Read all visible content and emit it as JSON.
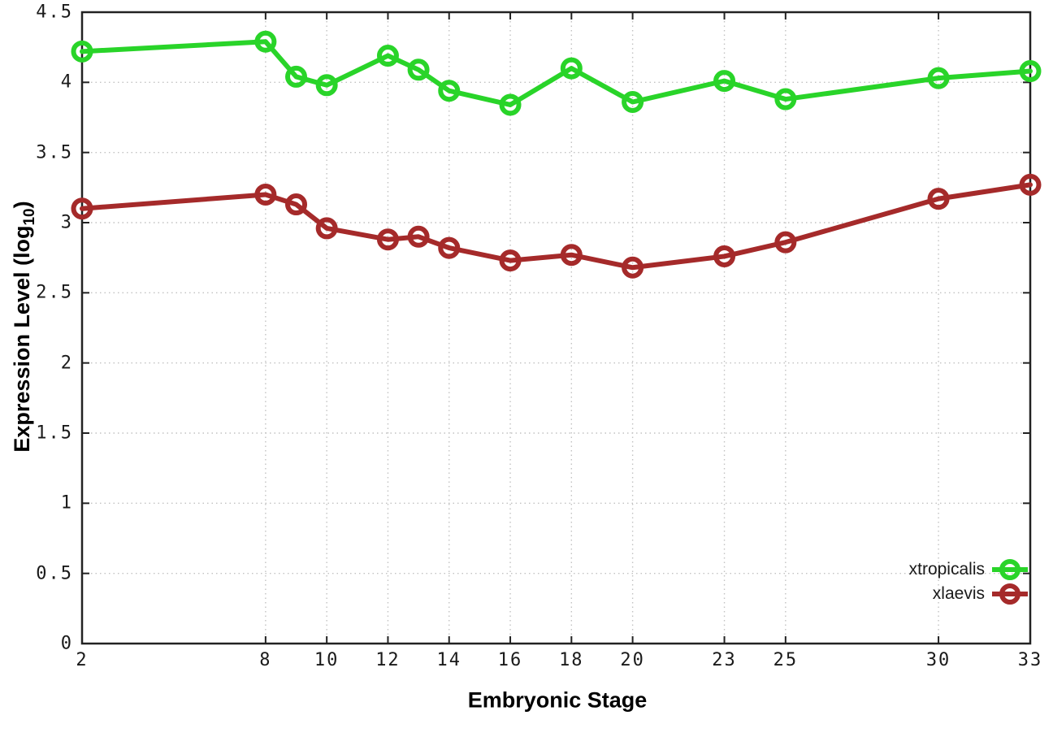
{
  "figure": {
    "background": "#ffffff",
    "border_color": "#222222",
    "grid_color": "#c2c2c2",
    "tick_color": "#222222",
    "text_color": "#1a1a1a"
  },
  "chart_data": {
    "type": "line",
    "title": "",
    "xlabel": "Embryonic Stage",
    "ylabel": "Expression Level (log10)",
    "ylabel_parts": {
      "prefix": "Expression Level (log",
      "sub": "10",
      "suffix": ")"
    },
    "xlim": [
      2,
      33
    ],
    "ylim": [
      0,
      4.5
    ],
    "grid": true,
    "grid_style": "dotted",
    "legend_position": "inside-bottom-right",
    "x_ticks": [
      2,
      8,
      10,
      12,
      14,
      16,
      18,
      20,
      23,
      25,
      30,
      33
    ],
    "x_tick_labels": [
      "2",
      "8",
      "10",
      "12",
      "14",
      "16",
      "18",
      "20",
      "23",
      "25",
      "30",
      "33"
    ],
    "y_ticks": [
      0,
      0.5,
      1,
      1.5,
      2,
      2.5,
      3,
      3.5,
      4,
      4.5
    ],
    "y_tick_labels": [
      "0",
      "0.5",
      "1",
      "1.5",
      "2",
      "2.5",
      "3",
      "3.5",
      "4",
      "4.5"
    ],
    "x": [
      2,
      8,
      9,
      10,
      12,
      13,
      14,
      16,
      18,
      20,
      23,
      25,
      30,
      33
    ],
    "series": [
      {
        "name": "xtropicalis",
        "color": "#29d429",
        "marker": "open-circle",
        "values": [
          4.22,
          4.29,
          4.04,
          3.98,
          4.19,
          4.09,
          3.94,
          3.84,
          4.1,
          3.86,
          4.01,
          3.88,
          4.03,
          4.08
        ]
      },
      {
        "name": "xlaevis",
        "color": "#a52a2a",
        "marker": "open-circle",
        "values": [
          3.1,
          3.2,
          3.13,
          2.96,
          2.88,
          2.9,
          2.82,
          2.73,
          2.77,
          2.68,
          2.76,
          2.86,
          3.17,
          3.27
        ]
      }
    ]
  }
}
